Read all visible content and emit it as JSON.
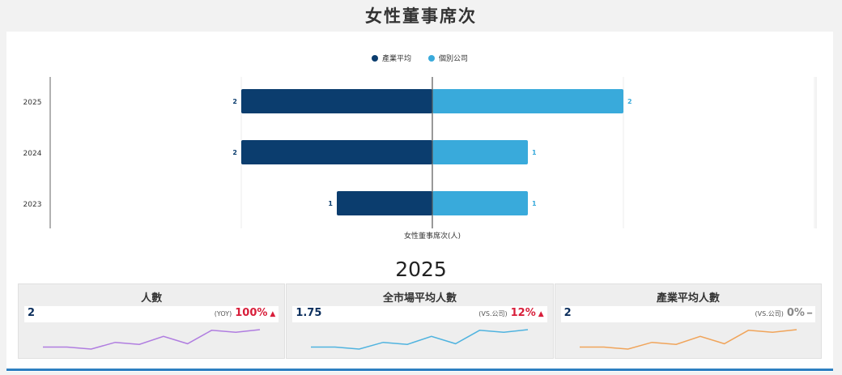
{
  "page": {
    "title": "女性董事席次",
    "year_heading": "2025"
  },
  "colors": {
    "industry": "#0b3d6e",
    "company": "#39aadb",
    "up": "#d81e3a",
    "flat": "#888888",
    "spark1": "#b07de0",
    "spark2": "#4fb3df",
    "spark3": "#f0a45a"
  },
  "chart_data": {
    "type": "bar",
    "orientation": "horizontal-diverging",
    "categories": [
      "2025",
      "2024",
      "2023"
    ],
    "series": [
      {
        "name": "產業平均",
        "values": [
          2,
          2,
          1
        ]
      },
      {
        "name": "個別公司",
        "values": [
          2,
          1,
          1
        ]
      }
    ],
    "xlabel": "女性董事席次(人)",
    "xlim": [
      -4,
      4
    ],
    "legend": "top-center",
    "grid": true
  },
  "kpis": [
    {
      "title": "人數",
      "value": "2",
      "compare_label": "(YOY)",
      "change": "100%",
      "trend": "up",
      "spark": [
        2.0,
        2.0,
        1.7,
        2.7,
        2.4,
        3.6,
        2.5,
        4.5,
        4.2,
        4.6
      ]
    },
    {
      "title": "全市場平均人數",
      "value": "1.75",
      "compare_label": "(VS.公司)",
      "change": "12%",
      "trend": "up",
      "spark": [
        2.0,
        2.0,
        1.7,
        2.7,
        2.4,
        3.6,
        2.5,
        4.5,
        4.2,
        4.6
      ]
    },
    {
      "title": "產業平均人數",
      "value": "2",
      "compare_label": "(VS.公司)",
      "change": "0%",
      "trend": "flat",
      "spark": [
        2.0,
        2.0,
        1.7,
        2.7,
        2.4,
        3.6,
        2.5,
        4.5,
        4.2,
        4.6
      ]
    }
  ]
}
